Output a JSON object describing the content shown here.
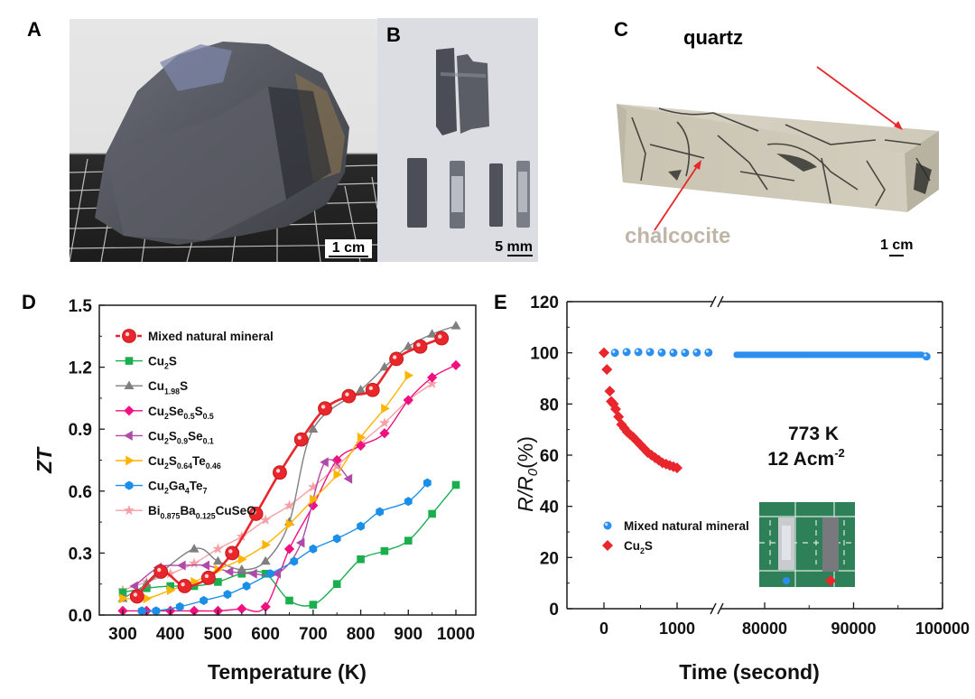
{
  "panels": {
    "A": {
      "label": "A",
      "scale_bar": "1 cm"
    },
    "B": {
      "label": "B",
      "scale_bar": "5 mm"
    },
    "C": {
      "label": "C",
      "scale_bar": "1 cm",
      "annotations": {
        "quartz": "quartz",
        "chalcocite": "chalcocite"
      }
    },
    "D": {
      "label": "D"
    },
    "E": {
      "label": "E"
    }
  },
  "colors": {
    "mixed": "#e8262b",
    "cu2s": "#1aae4e",
    "cu198s": "#7f7f7f",
    "cu2se05s05": "#f0107f",
    "cu2s09se01": "#b04aa8",
    "cu2s064te046": "#ffb400",
    "cu2ga4te7": "#1b8fe8",
    "bibacuseo": "#f6a0a6",
    "blue_dot": "#2a8ff0",
    "red_diamond": "#e8262b",
    "chalcocite_text": "#bfb6a8",
    "arrow": "#e8262b"
  },
  "chart_data": [
    {
      "type": "line",
      "title": "",
      "xlabel": "Temperature (K)",
      "ylabel": "ZT",
      "xlim": [
        280,
        1050
      ],
      "ylim": [
        0,
        1.5
      ],
      "xticks": [
        "300",
        "400",
        "500",
        "600",
        "700",
        "800",
        "900",
        "1000"
      ],
      "xtick_values": [
        300,
        400,
        500,
        600,
        700,
        800,
        900,
        1000
      ],
      "yticks": [
        "0.0",
        "0.3",
        "0.6",
        "0.9",
        "1.2",
        "1.5"
      ],
      "ytick_values": [
        0,
        0.3,
        0.6,
        0.9,
        1.2,
        1.5
      ],
      "legend_position": "top-left",
      "series": [
        {
          "key": "bibacuseo",
          "name": "Bi0.875Ba0.125CuSeO",
          "name_parts": [
            [
              "Bi",
              ""
            ],
            [
              "0.875",
              "sub"
            ],
            [
              "Ba",
              ""
            ],
            [
              "0.125",
              "sub"
            ],
            [
              "CuSeO",
              ""
            ]
          ],
          "marker": "star",
          "x": [
            300,
            350,
            400,
            450,
            500,
            550,
            600,
            650,
            700,
            750,
            800,
            850,
            900,
            950
          ],
          "y": [
            0.12,
            0.16,
            0.2,
            0.25,
            0.32,
            0.38,
            0.46,
            0.53,
            0.62,
            0.72,
            0.83,
            0.93,
            1.04,
            1.12
          ]
        },
        {
          "key": "cu2s",
          "name": "Cu2S",
          "name_parts": [
            [
              "Cu",
              ""
            ],
            [
              "2",
              "sub"
            ],
            [
              "S",
              ""
            ]
          ],
          "marker": "square",
          "x": [
            300,
            350,
            400,
            450,
            500,
            550,
            600,
            650,
            700,
            750,
            800,
            850,
            900,
            950,
            1000
          ],
          "y": [
            0.11,
            0.13,
            0.14,
            0.14,
            0.16,
            0.2,
            0.2,
            0.07,
            0.05,
            0.15,
            0.27,
            0.31,
            0.36,
            0.49,
            0.63
          ]
        },
        {
          "key": "cu198s",
          "name": "Cu1.98S",
          "name_parts": [
            [
              "Cu",
              ""
            ],
            [
              "1.98",
              "sub"
            ],
            [
              "S",
              ""
            ]
          ],
          "marker": "triangle-up",
          "x": [
            300,
            350,
            450,
            500,
            550,
            600,
            650,
            700,
            800,
            850,
            900,
            950,
            1000
          ],
          "y": [
            0.08,
            0.15,
            0.32,
            0.26,
            0.22,
            0.26,
            0.45,
            0.9,
            1.09,
            1.2,
            1.3,
            1.36,
            1.4
          ]
        },
        {
          "key": "cu2se05s05",
          "name": "Cu2Se0.5S0.5",
          "name_parts": [
            [
              "Cu",
              ""
            ],
            [
              "2",
              "sub"
            ],
            [
              "Se",
              ""
            ],
            [
              "0.5",
              "sub"
            ],
            [
              "S",
              ""
            ],
            [
              "0.5",
              "sub"
            ]
          ],
          "marker": "diamond",
          "x": [
            300,
            350,
            400,
            450,
            500,
            550,
            600,
            650,
            700,
            750,
            800,
            850,
            900,
            950,
            1000
          ],
          "y": [
            0.02,
            0.02,
            0.02,
            0.02,
            0.02,
            0.03,
            0.04,
            0.32,
            0.53,
            0.75,
            0.82,
            0.88,
            1.04,
            1.15,
            1.21
          ]
        },
        {
          "key": "cu2s09se01",
          "name": "Cu2S0.9Se0.1",
          "name_parts": [
            [
              "Cu",
              ""
            ],
            [
              "2",
              "sub"
            ],
            [
              "S",
              ""
            ],
            [
              "0.9",
              "sub"
            ],
            [
              "Se",
              ""
            ],
            [
              "0.1",
              "sub"
            ]
          ],
          "marker": "triangle-left",
          "x": [
            325,
            375,
            425,
            475,
            525,
            575,
            625,
            675,
            725,
            775
          ],
          "y": [
            0.14,
            0.23,
            0.24,
            0.24,
            0.21,
            0.2,
            0.2,
            0.35,
            0.74,
            0.66
          ]
        },
        {
          "key": "cu2s064te046",
          "name": "Cu2S0.64Te0.46",
          "name_parts": [
            [
              "Cu",
              ""
            ],
            [
              "2",
              "sub"
            ],
            [
              "S",
              ""
            ],
            [
              "0.64",
              "sub"
            ],
            [
              "Te",
              ""
            ],
            [
              "0.46",
              "sub"
            ]
          ],
          "marker": "triangle-right",
          "x": [
            300,
            350,
            400,
            450,
            500,
            550,
            600,
            650,
            700,
            750,
            800,
            850,
            900
          ],
          "y": [
            0.08,
            0.08,
            0.12,
            0.16,
            0.22,
            0.27,
            0.34,
            0.44,
            0.56,
            0.68,
            0.86,
            1.0,
            1.16
          ]
        },
        {
          "key": "cu2ga4te7",
          "name": "Cu2Ga4Te7",
          "name_parts": [
            [
              "Cu",
              ""
            ],
            [
              "2",
              "sub"
            ],
            [
              "Ga",
              ""
            ],
            [
              "4",
              "sub"
            ],
            [
              "Te",
              ""
            ],
            [
              "7",
              "sub"
            ]
          ],
          "marker": "hexagon",
          "x": [
            340,
            370,
            420,
            470,
            520,
            560,
            610,
            660,
            700,
            750,
            800,
            840,
            900,
            940
          ],
          "y": [
            0.02,
            0.02,
            0.04,
            0.07,
            0.1,
            0.14,
            0.2,
            0.26,
            0.32,
            0.37,
            0.43,
            0.5,
            0.55,
            0.64
          ]
        },
        {
          "key": "mixed",
          "name": "Mixed natural mineral",
          "name_parts": [
            [
              "Mixed natural mineral",
              ""
            ]
          ],
          "marker": "circle",
          "x": [
            330,
            380,
            430,
            480,
            530,
            580,
            630,
            675,
            725,
            775,
            825,
            875,
            925,
            970
          ],
          "y": [
            0.09,
            0.21,
            0.14,
            0.18,
            0.3,
            0.49,
            0.69,
            0.85,
            1.0,
            1.06,
            1.09,
            1.24,
            1.3,
            1.34
          ]
        }
      ],
      "legend_order": [
        "mixed",
        "cu2s",
        "cu198s",
        "cu2se05s05",
        "cu2s09se01",
        "cu2s064te046",
        "cu2ga4te7",
        "bibacuseo"
      ]
    },
    {
      "type": "scatter",
      "title": "",
      "xlabel": "Time (second)",
      "ylabel_parts": [
        [
          "R/R",
          ""
        ],
        [
          "0",
          "sub"
        ],
        [
          "(%)",
          ""
        ]
      ],
      "ylabel": "R/R0(%)",
      "ylim": [
        0,
        120
      ],
      "axis_break": {
        "from": 1500,
        "to": 75000
      },
      "xticks": [
        "0",
        "1000",
        "80000",
        "90000",
        "100000"
      ],
      "xtick_values": [
        0,
        1000,
        80000,
        90000,
        100000
      ],
      "yticks": [
        "0",
        "20",
        "40",
        "60",
        "80",
        "100",
        "120"
      ],
      "ytick_values": [
        0,
        20,
        40,
        60,
        80,
        100,
        120
      ],
      "annotation": {
        "line1": "773 K",
        "line2_main": "12 Acm",
        "line2_sup": "-2"
      },
      "legend_position": "bottom-left",
      "series": [
        {
          "key": "mixed",
          "name": "Mixed natural mineral",
          "name_parts": [
            [
              "Mixed natural mineral",
              ""
            ]
          ],
          "marker": "sphere",
          "x": [
            150,
            310,
            470,
            630,
            790,
            950,
            1110,
            1270,
            1430
          ],
          "y": [
            100,
            100.3,
            100.3,
            100.3,
            100.1,
            100,
            100,
            100.1,
            100.1
          ],
          "continuous_segment": {
            "x_start": 76500,
            "x_end": 98000,
            "y_start": 99.2,
            "y_end": 98.8,
            "final_point": [
              98200,
              98.6
            ]
          }
        },
        {
          "key": "cu2s",
          "name": "Cu2S",
          "name_parts": [
            [
              "Cu",
              ""
            ],
            [
              "2",
              "sub"
            ],
            [
              "S",
              ""
            ]
          ],
          "marker": "diamond",
          "x": [
            0,
            40,
            80,
            100,
            130,
            160,
            200,
            240,
            280,
            320,
            360,
            400,
            450,
            500,
            550,
            600,
            650,
            700,
            750,
            800,
            850,
            900,
            950,
            1000
          ],
          "y": [
            100,
            93.5,
            85,
            81,
            80,
            78,
            75,
            72,
            70.5,
            69,
            68,
            67,
            65.5,
            64,
            62.5,
            61,
            60,
            59,
            58,
            57,
            56.5,
            56,
            55.5,
            55
          ]
        }
      ]
    }
  ]
}
